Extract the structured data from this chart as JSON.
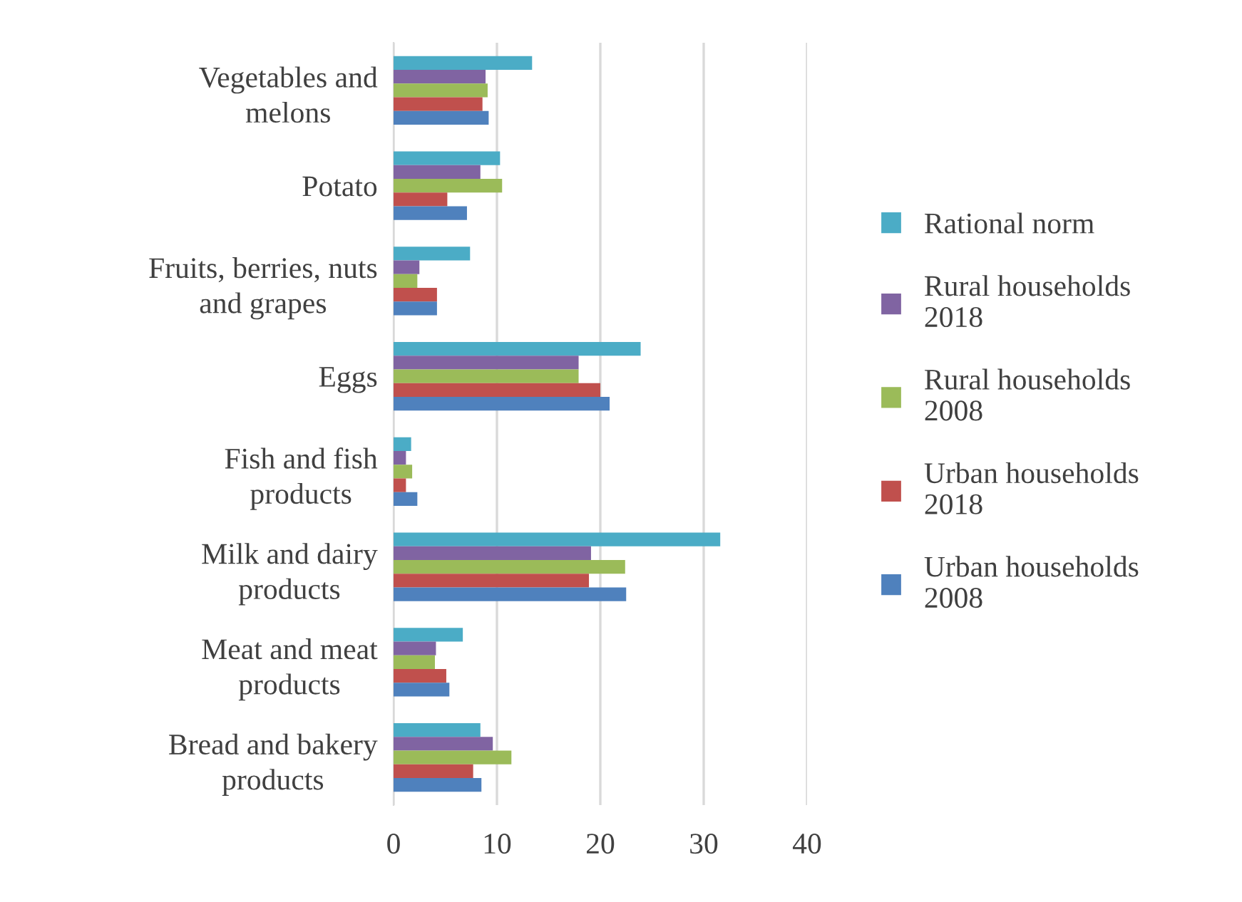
{
  "chart_data": {
    "type": "bar",
    "orientation": "horizontal",
    "categories": [
      "Vegetables and\nmelons",
      "Potato",
      "Fruits, berries, nuts\nand grapes",
      "Eggs",
      "Fish and fish\nproducts",
      "Milk and dairy\nproducts",
      "Meat and meat\nproducts",
      "Bread and bakery\nproducts"
    ],
    "series": [
      {
        "name": "Rational norm",
        "color": "#4bacc6",
        "values": [
          13.4,
          10.3,
          7.4,
          23.9,
          1.7,
          31.6,
          6.7,
          8.4
        ]
      },
      {
        "name": "Rural households\n2018",
        "color": "#8064a2",
        "values": [
          8.9,
          8.4,
          2.5,
          17.9,
          1.2,
          19.1,
          4.1,
          9.6
        ]
      },
      {
        "name": "Rural households\n2008",
        "color": "#9bbb59",
        "values": [
          9.1,
          10.5,
          2.3,
          17.9,
          1.8,
          22.4,
          4.0,
          11.4
        ]
      },
      {
        "name": "Urban households\n2018",
        "color": "#c0504d",
        "values": [
          8.6,
          5.2,
          4.2,
          20.0,
          1.2,
          18.9,
          5.1,
          7.7
        ]
      },
      {
        "name": "Urban households\n2008",
        "color": "#4f81bd",
        "values": [
          9.2,
          7.1,
          4.2,
          20.9,
          2.3,
          22.5,
          5.4,
          8.5
        ]
      }
    ],
    "xlim": [
      0,
      40
    ],
    "xticks": [
      0,
      10,
      20,
      30,
      40
    ],
    "grid": "x",
    "legend": "right"
  }
}
